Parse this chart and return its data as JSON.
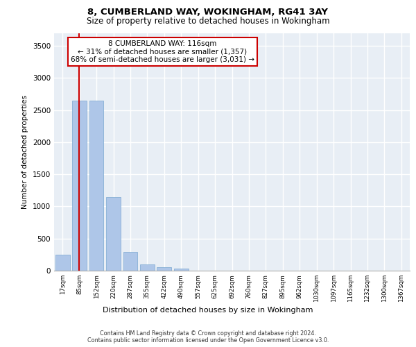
{
  "title1": "8, CUMBERLAND WAY, WOKINGHAM, RG41 3AY",
  "title2": "Size of property relative to detached houses in Wokingham",
  "xlabel": "Distribution of detached houses by size in Wokingham",
  "ylabel": "Number of detached properties",
  "bin_labels": [
    "17sqm",
    "85sqm",
    "152sqm",
    "220sqm",
    "287sqm",
    "355sqm",
    "422sqm",
    "490sqm",
    "557sqm",
    "625sqm",
    "692sqm",
    "760sqm",
    "827sqm",
    "895sqm",
    "962sqm",
    "1030sqm",
    "1097sqm",
    "1165sqm",
    "1232sqm",
    "1300sqm",
    "1367sqm"
  ],
  "bar_values": [
    250,
    2650,
    2650,
    1150,
    290,
    100,
    50,
    30,
    0,
    0,
    0,
    0,
    0,
    0,
    0,
    0,
    0,
    0,
    0,
    0,
    0
  ],
  "bar_color": "#aec6e8",
  "bar_edgecolor": "#7aa8d0",
  "vline_color": "#cc0000",
  "annotation_text": "8 CUMBERLAND WAY: 116sqm\n← 31% of detached houses are smaller (1,357)\n68% of semi-detached houses are larger (3,031) →",
  "annotation_box_color": "white",
  "annotation_box_edgecolor": "#cc0000",
  "ylim": [
    0,
    3700
  ],
  "yticks": [
    0,
    500,
    1000,
    1500,
    2000,
    2500,
    3000,
    3500
  ],
  "background_color": "#e8eef5",
  "grid_color": "white",
  "footer_text": "Contains HM Land Registry data © Crown copyright and database right 2024.\nContains public sector information licensed under the Open Government Licence v3.0."
}
